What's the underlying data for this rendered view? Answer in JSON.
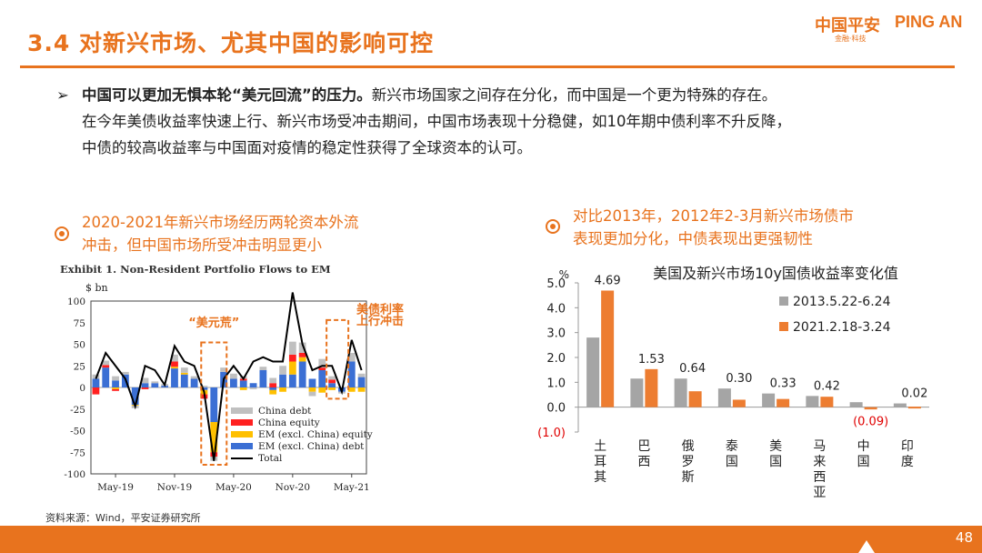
{
  "header": {
    "title": "3.4 对新兴市场、尤其中国的影响可控",
    "logo_cn": "中国平安",
    "logo_en": "PING AN",
    "logo_sub": "金融·科技"
  },
  "bullet": {
    "arrow": "➢",
    "bold": "中国可以更加无惧本轮“美元回流”的压力。",
    "line1_rest": "新兴市场国家之间存在分化，而中国是一个更为特殊的存在。",
    "line2": "在今年美债收益率快速上行、新兴市场受冲击期间，中国市场表现十分稳健，如10年期中债利率不升反降，",
    "line3": "中债的较高收益率与中国面对疫情的稳定性获得了全球资本的认可。"
  },
  "callout_left": {
    "line1": "2020-2021年新兴市场经历两轮资本外流",
    "line2": "冲击，但中国市场所受冲击明显更小"
  },
  "callout_right": {
    "line1": "对比2013年，2012年2-3月新兴市场债市",
    "line2": "表现更加分化，中债表现出更强韧性"
  },
  "exhibit_title": "Exhibit 1. Non-Resident Portfolio Flows to EM",
  "source": "资料来源：Wind，平安证券研究所",
  "page_number": "48",
  "colors": {
    "accent": "#e8731e",
    "china_debt": "#c0c0c0",
    "china_equity": "#ff2020",
    "em_equity": "#ffc000",
    "em_debt": "#3b6fd4",
    "total": "#000000",
    "s2013": "#a5a5a5",
    "s2021": "#ed7d31"
  },
  "chart_data": [
    {
      "type": "bar",
      "subtype": "stacked-bar-with-line",
      "title": "Exhibit 1. Non-Resident Portfolio Flows to EM",
      "ylabel": "$ bn",
      "ylim": [
        -100,
        100
      ],
      "yticks": [
        100,
        75,
        50,
        25,
        0,
        -25,
        -50,
        -75,
        -100
      ],
      "xticks": [
        "May-19",
        "Nov-19",
        "May-20",
        "Nov-20",
        "May-21"
      ],
      "categories": [
        "Mar-19",
        "Apr-19",
        "May-19",
        "Jun-19",
        "Jul-19",
        "Aug-19",
        "Sep-19",
        "Oct-19",
        "Nov-19",
        "Dec-19",
        "Jan-20",
        "Feb-20",
        "Mar-20",
        "Apr-20",
        "May-20",
        "Jun-20",
        "Jul-20",
        "Aug-20",
        "Sep-20",
        "Oct-20",
        "Nov-20",
        "Dec-20",
        "Jan-21",
        "Feb-21",
        "Mar-21",
        "Apr-21",
        "May-21",
        "Jun-21"
      ],
      "series": [
        {
          "name": "China debt",
          "values": [
            5,
            5,
            5,
            3,
            -3,
            6,
            2,
            2,
            8,
            6,
            3,
            2,
            -5,
            5,
            6,
            3,
            -2,
            4,
            6,
            10,
            15,
            12,
            -5,
            10,
            4,
            -2,
            10,
            4
          ]
        },
        {
          "name": "China equity",
          "values": [
            -8,
            3,
            -2,
            0,
            0,
            -2,
            0,
            0,
            6,
            0,
            0,
            -5,
            -5,
            0,
            0,
            2,
            0,
            0,
            5,
            0,
            8,
            5,
            0,
            3,
            4,
            0,
            0,
            0
          ]
        },
        {
          "name": "EM (excl. China) equity",
          "values": [
            0,
            0,
            -2,
            0,
            -1,
            0,
            0,
            0,
            2,
            2,
            0,
            -5,
            -35,
            0,
            0,
            -3,
            0,
            0,
            -5,
            -5,
            15,
            5,
            -5,
            -6,
            -3,
            0,
            -5,
            -5
          ]
        },
        {
          "name": "EM (excl. China) debt",
          "values": [
            10,
            23,
            8,
            15,
            -20,
            5,
            5,
            2,
            22,
            15,
            10,
            -3,
            -40,
            18,
            10,
            8,
            5,
            20,
            -3,
            15,
            15,
            30,
            10,
            20,
            5,
            -5,
            30,
            12
          ]
        }
      ],
      "total": [
        10,
        40,
        25,
        10,
        -22,
        25,
        20,
        3,
        48,
        30,
        25,
        -5,
        -85,
        10,
        25,
        10,
        30,
        35,
        30,
        30,
        110,
        50,
        20,
        25,
        25,
        -5,
        55,
        20
      ],
      "legend": [
        "China debt",
        "China equity",
        "EM (excl. China) equity",
        "EM (excl. China) debt",
        "Total"
      ],
      "annotations": [
        "“美元荒”",
        "美债利率",
        "上行冲击"
      ]
    },
    {
      "type": "bar",
      "title": "美国及新兴市场10y国债收益率变化值",
      "ylabel": "%",
      "ylim": [
        -1.0,
        5.0
      ],
      "yticks": [
        "5.0",
        "4.0",
        "3.0",
        "2.0",
        "1.0",
        "0.0",
        "(1.0)"
      ],
      "categories": [
        "土耳其",
        "巴西",
        "俄罗斯",
        "泰国",
        "美国",
        "马来西亚",
        "中国",
        "印度"
      ],
      "series": [
        {
          "name": "2013.5.22-6.24",
          "values": [
            2.8,
            1.15,
            1.15,
            0.75,
            0.55,
            0.45,
            0.2,
            0.15
          ]
        },
        {
          "name": "2021.2.18-3.24",
          "values": [
            4.69,
            1.53,
            0.64,
            0.3,
            0.33,
            0.42,
            -0.09,
            0.02
          ]
        }
      ],
      "data_labels": [
        "4.69",
        "1.53",
        "0.64",
        "0.30",
        "0.33",
        "0.42",
        "(0.09)",
        "0.02"
      ],
      "legend": [
        "2013.5.22-6.24",
        "2021.2.18-3.24"
      ]
    }
  ]
}
